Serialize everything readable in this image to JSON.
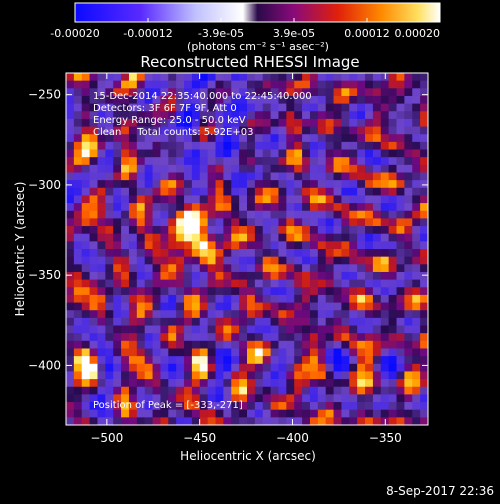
{
  "chart_data": {
    "type": "heatmap",
    "title": "Reconstructed RHESSI Image",
    "xlabel": "Heliocentric X (arcsec)",
    "ylabel": "Heliocentric Y (arcsec)",
    "xlim": [
      -522,
      -327
    ],
    "ylim": [
      -433,
      -238
    ],
    "x_ticks": [
      -500,
      -450,
      -400,
      -350
    ],
    "y_ticks": [
      -250,
      -300,
      -350,
      -400
    ],
    "colorbar": {
      "ticks": [
        "-0.00020",
        "-0.00012",
        "-3.9e-05",
        "3.9e-05",
        "0.00012",
        "0.00020"
      ],
      "range": [
        -0.0002,
        0.0002
      ],
      "units": "(photons cm⁻² s⁻¹ asec⁻²)",
      "colors": [
        "#0a0aff",
        "#5a2aff",
        "#8a4ae6",
        "#e8e8e8",
        "#ffffff",
        "#5a0a9a",
        "#c21a10",
        "#ff5a00",
        "#ffb000",
        "#fff6a0",
        "#ffffff"
      ]
    },
    "annotations": [
      "15-Dec-2014 22:35:40.000 to 22:45:40.000",
      "Detectors: 3F 6F 7F 9F, Att 0",
      "Energy Range: 25.0 - 50.0 keV",
      "Clean     Total counts: 5.92E+03"
    ],
    "peak_label": "Position of Peak = [-333,-271]",
    "peak": [
      -333,
      -271
    ]
  },
  "footer": {
    "timestamp": "8-Sep-2017 22:36"
  }
}
